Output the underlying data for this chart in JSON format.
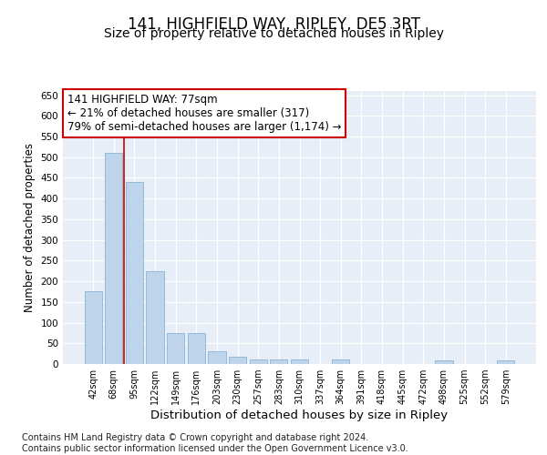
{
  "title": "141, HIGHFIELD WAY, RIPLEY, DE5 3RT",
  "subtitle": "Size of property relative to detached houses in Ripley",
  "xlabel": "Distribution of detached houses by size in Ripley",
  "ylabel": "Number of detached properties",
  "categories": [
    "42sqm",
    "68sqm",
    "95sqm",
    "122sqm",
    "149sqm",
    "176sqm",
    "203sqm",
    "230sqm",
    "257sqm",
    "283sqm",
    "310sqm",
    "337sqm",
    "364sqm",
    "391sqm",
    "418sqm",
    "445sqm",
    "472sqm",
    "498sqm",
    "525sqm",
    "552sqm",
    "579sqm"
  ],
  "values": [
    175,
    510,
    440,
    225,
    75,
    75,
    30,
    18,
    10,
    10,
    10,
    0,
    10,
    0,
    0,
    0,
    0,
    8,
    0,
    0,
    8
  ],
  "bar_color": "#bdd4ea",
  "bar_edge_color": "#8ab4d4",
  "vline_color": "#cc0000",
  "vline_x": 1.5,
  "annotation_text": "141 HIGHFIELD WAY: 77sqm\n← 21% of detached houses are smaller (317)\n79% of semi-detached houses are larger (1,174) →",
  "annotation_box_color": "#ffffff",
  "annotation_box_edge": "#cc0000",
  "ylim": [
    0,
    660
  ],
  "yticks": [
    0,
    50,
    100,
    150,
    200,
    250,
    300,
    350,
    400,
    450,
    500,
    550,
    600,
    650
  ],
  "bg_color": "#e8eef7",
  "fig_bg_color": "#ffffff",
  "footer": "Contains HM Land Registry data © Crown copyright and database right 2024.\nContains public sector information licensed under the Open Government Licence v3.0.",
  "title_fontsize": 12,
  "subtitle_fontsize": 10,
  "xlabel_fontsize": 9.5,
  "ylabel_fontsize": 8.5,
  "footer_fontsize": 7
}
